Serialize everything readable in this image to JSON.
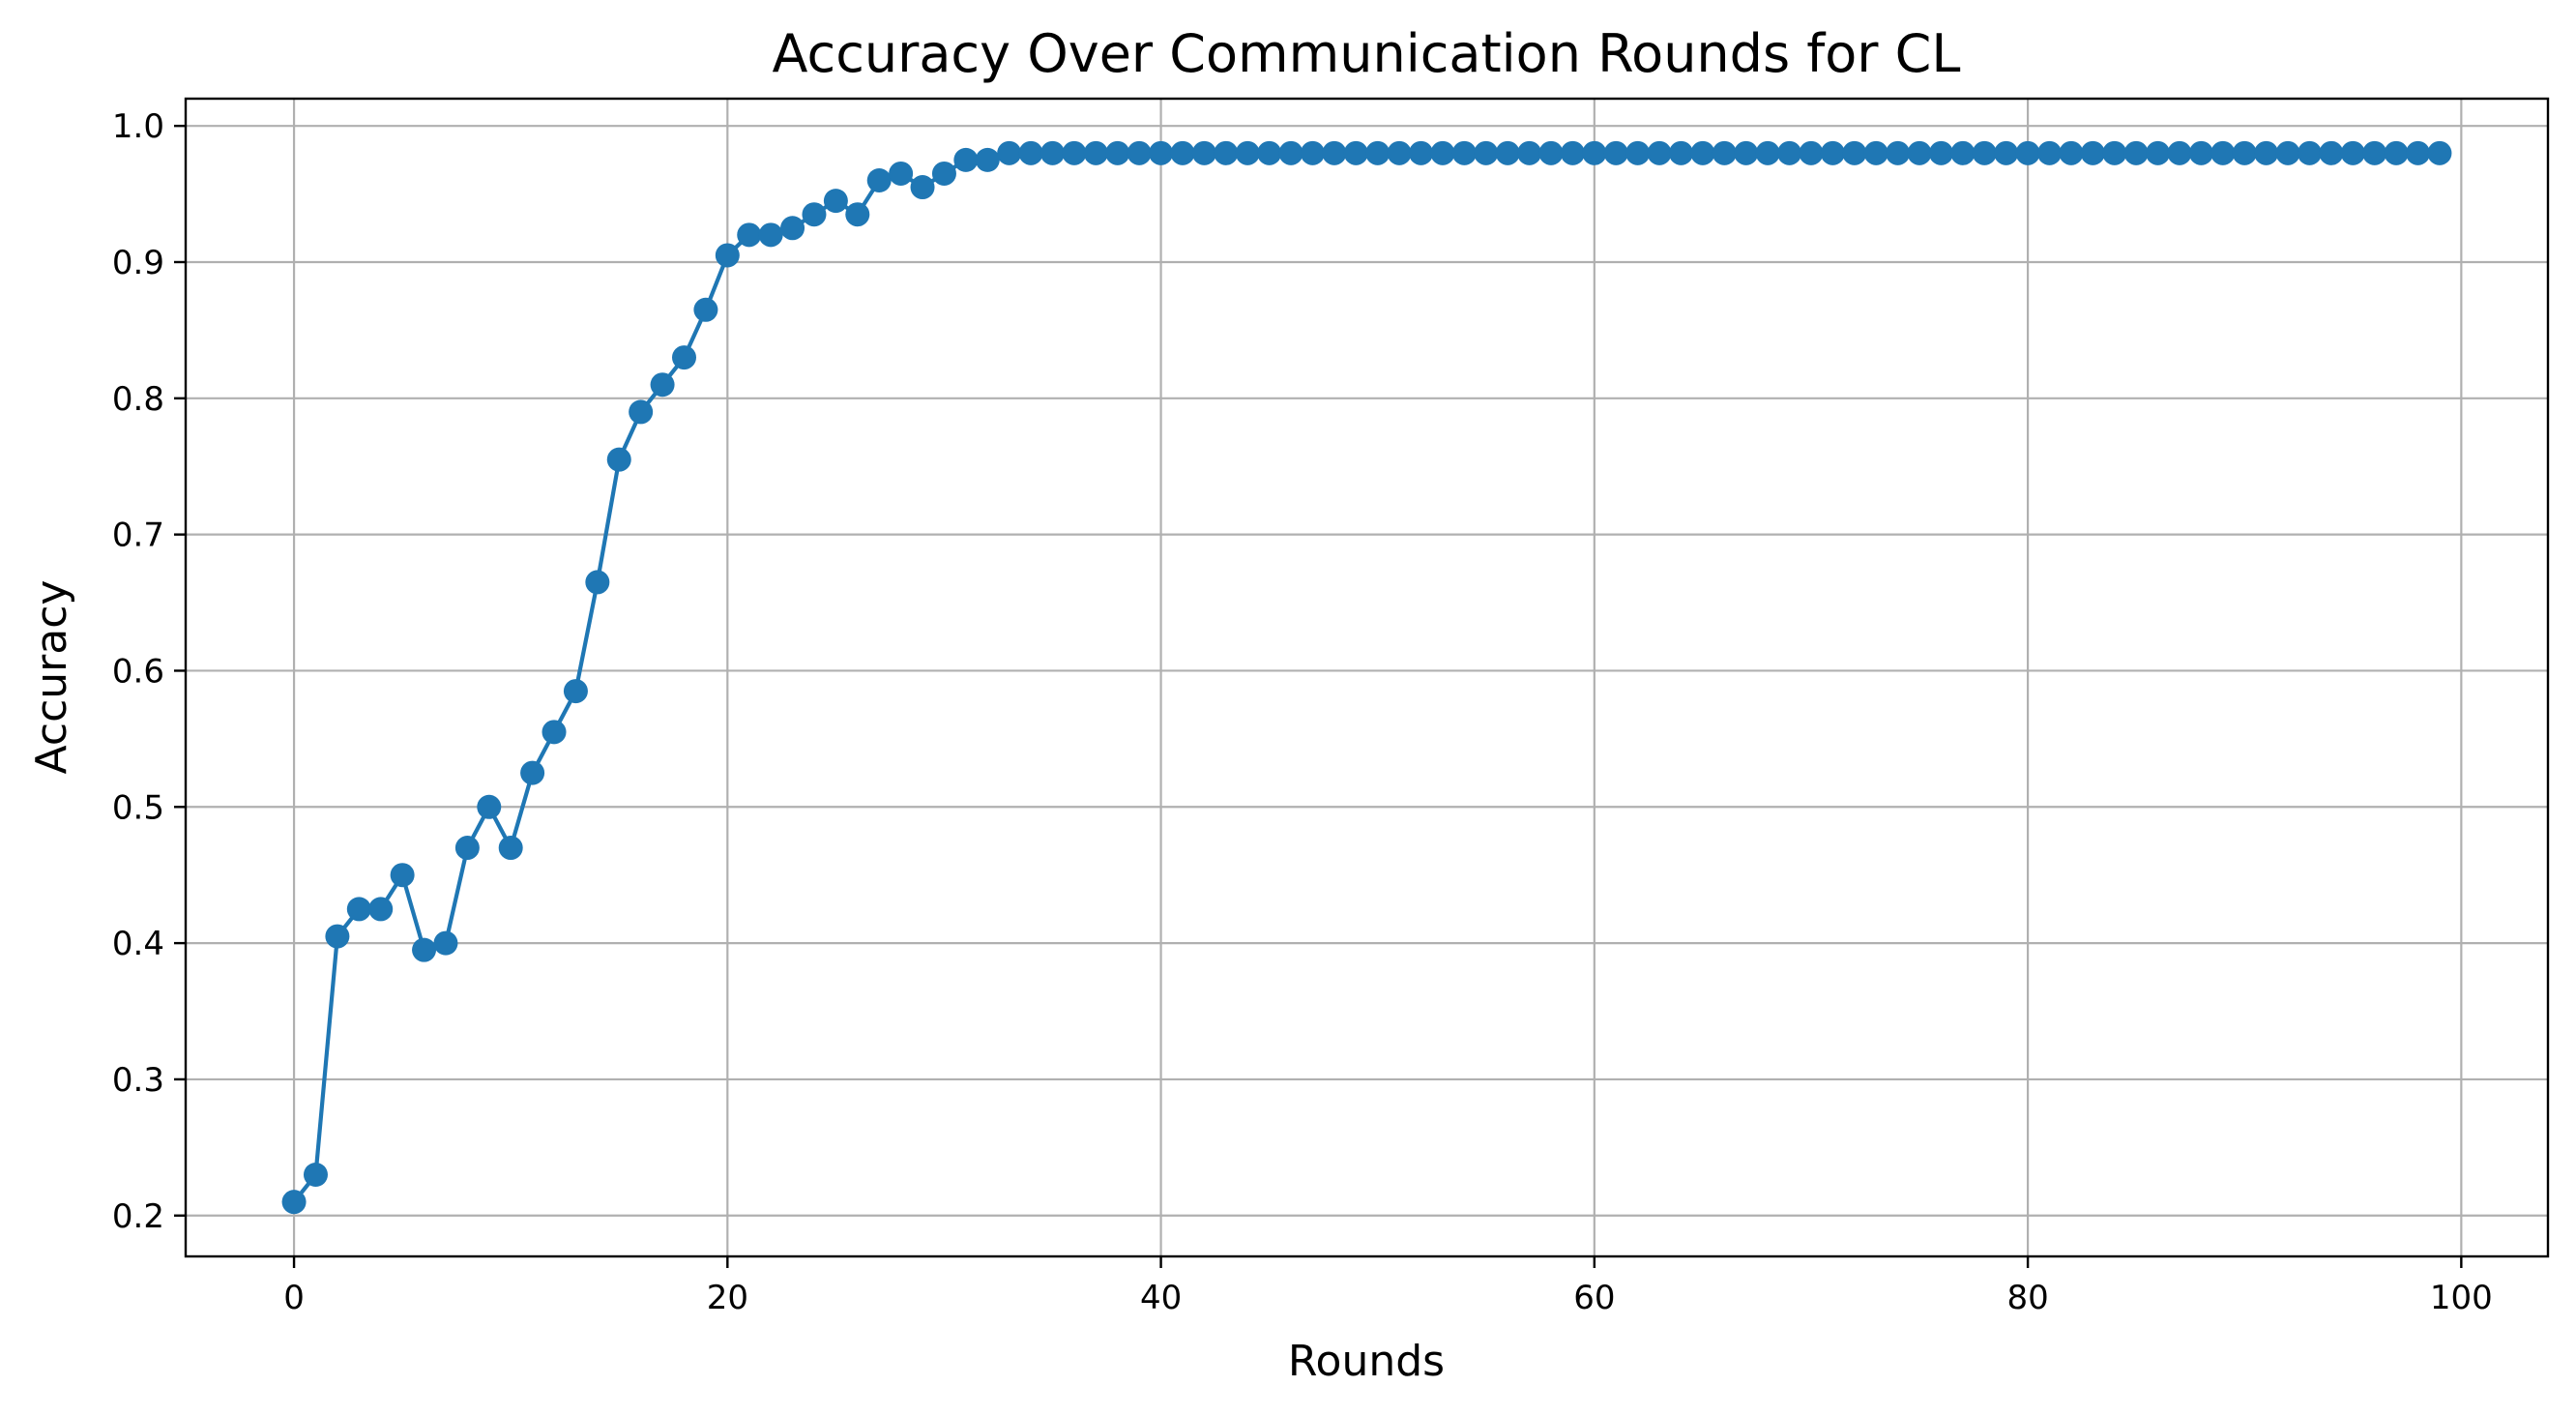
{
  "chart_data": {
    "type": "line",
    "title": "Accuracy Over Communication Rounds for CL",
    "xlabel": "Rounds",
    "ylabel": "Accuracy",
    "xlim": [
      -5,
      104
    ],
    "ylim": [
      0.17,
      1.02
    ],
    "x_ticks": [
      0,
      20,
      40,
      60,
      80,
      100
    ],
    "y_ticks": [
      0.2,
      0.3,
      0.4,
      0.5,
      0.6,
      0.7,
      0.8,
      0.9,
      1.0
    ],
    "x_tick_labels": [
      "0",
      "20",
      "40",
      "60",
      "80",
      "100"
    ],
    "y_tick_labels": [
      "0.2",
      "0.3",
      "0.4",
      "0.5",
      "0.6",
      "0.7",
      "0.8",
      "0.9",
      "1.0"
    ],
    "grid": true,
    "line_color": "#1f77b4",
    "marker": "circle",
    "series": [
      {
        "x": [
          0,
          1,
          2,
          3,
          4,
          5,
          6,
          7,
          8,
          9,
          10,
          11,
          12,
          13,
          14,
          15,
          16,
          17,
          18,
          19,
          20,
          21,
          22,
          23,
          24,
          25,
          26,
          27,
          28,
          29,
          30,
          31,
          32,
          33,
          34,
          35,
          36,
          37,
          38,
          39,
          40,
          41,
          42,
          43,
          44,
          45,
          46,
          47,
          48,
          49,
          50,
          51,
          52,
          53,
          54,
          55,
          56,
          57,
          58,
          59,
          60,
          61,
          62,
          63,
          64,
          65,
          66,
          67,
          68,
          69,
          70,
          71,
          72,
          73,
          74,
          75,
          76,
          77,
          78,
          79,
          80,
          81,
          82,
          83,
          84,
          85,
          86,
          87,
          88,
          89,
          90,
          91,
          92,
          93,
          94,
          95,
          96,
          97,
          98,
          99
        ],
        "values": [
          0.21,
          0.23,
          0.405,
          0.425,
          0.425,
          0.45,
          0.395,
          0.4,
          0.47,
          0.5,
          0.47,
          0.525,
          0.555,
          0.585,
          0.665,
          0.755,
          0.79,
          0.81,
          0.83,
          0.865,
          0.905,
          0.92,
          0.92,
          0.925,
          0.935,
          0.945,
          0.935,
          0.96,
          0.965,
          0.955,
          0.965,
          0.975,
          0.975,
          0.98,
          0.98,
          0.98,
          0.98,
          0.98,
          0.98,
          0.98,
          0.98,
          0.98,
          0.98,
          0.98,
          0.98,
          0.98,
          0.98,
          0.98,
          0.98,
          0.98,
          0.98,
          0.98,
          0.98,
          0.98,
          0.98,
          0.98,
          0.98,
          0.98,
          0.98,
          0.98,
          0.98,
          0.98,
          0.98,
          0.98,
          0.98,
          0.98,
          0.98,
          0.98,
          0.98,
          0.98,
          0.98,
          0.98,
          0.98,
          0.98,
          0.98,
          0.98,
          0.98,
          0.98,
          0.98,
          0.98,
          0.98,
          0.98,
          0.98,
          0.98,
          0.98,
          0.98,
          0.98,
          0.98,
          0.98,
          0.98,
          0.98,
          0.98,
          0.98,
          0.98,
          0.98,
          0.98,
          0.98,
          0.98,
          0.98,
          0.98
        ]
      }
    ]
  }
}
